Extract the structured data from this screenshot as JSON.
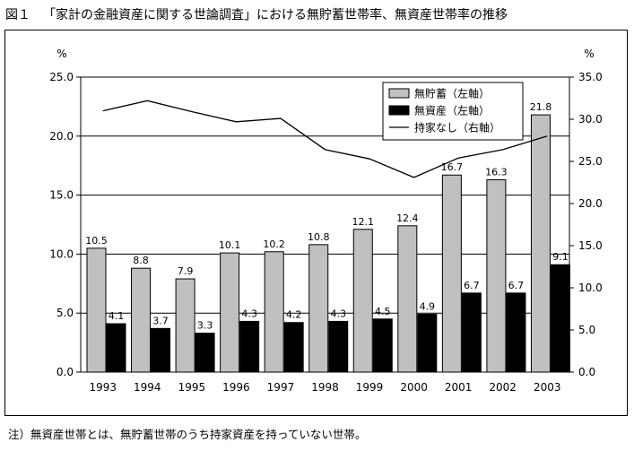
{
  "figure": {
    "number": "図１",
    "title": "「家計の金融資産に関する世論調査」における無貯蓄世帯率、無資産世帯率の推移",
    "note": "注）無資産世帯とは、無貯蓄世帯のうち持家資産を持っていない世帯。"
  },
  "chart_data": {
    "type": "bar",
    "categories": [
      "1993",
      "1994",
      "1995",
      "1996",
      "1997",
      "1998",
      "1999",
      "2000",
      "2001",
      "2002",
      "2003"
    ],
    "series": [
      {
        "name": "無貯蓄（左軸）",
        "type": "bar",
        "axis": "left",
        "color": "#c0c0c0",
        "values": [
          10.5,
          8.8,
          7.9,
          10.1,
          10.2,
          10.8,
          12.1,
          12.4,
          16.7,
          16.3,
          21.8
        ]
      },
      {
        "name": "無資産（左軸）",
        "type": "bar",
        "axis": "left",
        "color": "#000000",
        "values": [
          4.1,
          3.7,
          3.3,
          4.3,
          4.2,
          4.3,
          4.5,
          4.9,
          6.7,
          6.7,
          9.1
        ]
      },
      {
        "name": "持家なし（右軸）",
        "type": "line",
        "axis": "right",
        "color": "#000000",
        "values": [
          31.0,
          32.2,
          30.9,
          29.7,
          30.1,
          26.4,
          25.3,
          23.1,
          25.4,
          26.4,
          28.0
        ]
      }
    ],
    "y_left": {
      "label": "%",
      "range": [
        0,
        25
      ],
      "ticks": [
        "0.0",
        "5.0",
        "10.0",
        "15.0",
        "20.0",
        "25.0"
      ]
    },
    "y_right": {
      "label": "%",
      "range": [
        0,
        35
      ],
      "ticks": [
        "0.0",
        "5.0",
        "10.0",
        "15.0",
        "20.0",
        "25.0",
        "30.0",
        "35.0"
      ]
    },
    "grid": true,
    "legend": "top-right"
  }
}
